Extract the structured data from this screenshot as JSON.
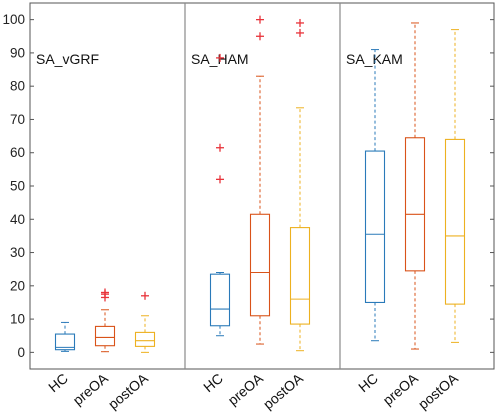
{
  "chart_data": {
    "type": "boxplot",
    "ylim": [
      -5,
      105
    ],
    "yticks": [
      0,
      10,
      20,
      30,
      40,
      50,
      60,
      70,
      80,
      90,
      100
    ],
    "categories": [
      "HC",
      "preOA",
      "postOA"
    ],
    "colors": {
      "HC": "#2a7ab9",
      "preOA": "#d95319",
      "postOA": "#edb120",
      "outlier": "#e8333a",
      "axis": "#555555",
      "divider": "#8a8a8a"
    },
    "panels": [
      {
        "title": "SA_vGRF",
        "boxes": [
          {
            "group": "HC",
            "whisker_low": 0.3,
            "q1": 0.8,
            "median": 1.5,
            "q3": 5.5,
            "whisker_high": 9,
            "outliers": []
          },
          {
            "group": "preOA",
            "whisker_low": 0.2,
            "q1": 2,
            "median": 4.5,
            "q3": 7.8,
            "whisker_high": 12.8,
            "outliers": [
              16.5,
              17.5,
              18
            ]
          },
          {
            "group": "postOA",
            "whisker_low": 0,
            "q1": 1.8,
            "median": 3.5,
            "q3": 6,
            "whisker_high": 11,
            "outliers": [
              17
            ]
          }
        ]
      },
      {
        "title": "SA_HAM",
        "boxes": [
          {
            "group": "HC",
            "whisker_low": 5,
            "q1": 8,
            "median": 13,
            "q3": 23.5,
            "whisker_high": 24,
            "outliers": [
              52,
              61.5,
              88.5
            ]
          },
          {
            "group": "preOA",
            "whisker_low": 2.5,
            "q1": 11,
            "median": 24,
            "q3": 41.5,
            "whisker_high": 83,
            "outliers": [
              95,
              100
            ]
          },
          {
            "group": "postOA",
            "whisker_low": 0.5,
            "q1": 8.5,
            "median": 16,
            "q3": 37.5,
            "whisker_high": 73.5,
            "outliers": [
              96,
              99
            ]
          }
        ]
      },
      {
        "title": "SA_KAM",
        "boxes": [
          {
            "group": "HC",
            "whisker_low": 3.5,
            "q1": 15,
            "median": 35.5,
            "q3": 60.5,
            "whisker_high": 91,
            "outliers": []
          },
          {
            "group": "preOA",
            "whisker_low": 1,
            "q1": 24.5,
            "median": 41.5,
            "q3": 64.5,
            "whisker_high": 99,
            "outliers": []
          },
          {
            "group": "postOA",
            "whisker_low": 3,
            "q1": 14.5,
            "median": 35,
            "q3": 64,
            "whisker_high": 97,
            "outliers": []
          }
        ]
      }
    ]
  }
}
